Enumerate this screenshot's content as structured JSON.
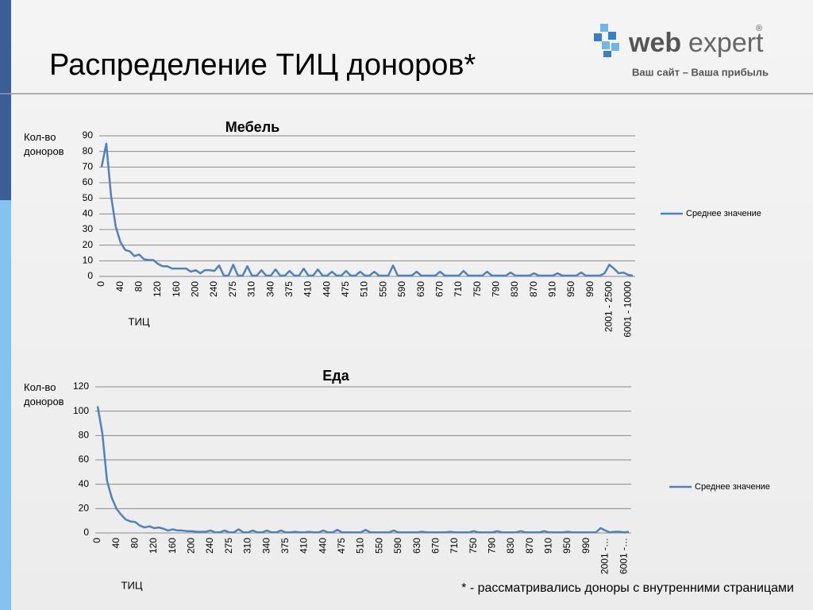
{
  "header": {
    "title": "Распределение ТИЦ доноров*",
    "logo_web": "web",
    "logo_expert": "expert",
    "logo_mark": "®",
    "tagline": "Ваш сайт – Ваша прибыль"
  },
  "chart_data": [
    {
      "type": "line",
      "title": "Мебель",
      "y_label": "Кол-во доноров",
      "x_label": "ТИЦ",
      "categories": [
        "0",
        null,
        null,
        null,
        "40",
        null,
        null,
        null,
        "80",
        null,
        null,
        null,
        "120",
        null,
        null,
        null,
        "160",
        null,
        null,
        null,
        "200",
        null,
        null,
        null,
        "240",
        null,
        null,
        null,
        "275",
        null,
        null,
        null,
        "310",
        null,
        null,
        null,
        "340",
        null,
        null,
        null,
        "375",
        null,
        null,
        null,
        "410",
        null,
        null,
        null,
        "440",
        null,
        null,
        null,
        "475",
        null,
        null,
        null,
        "510",
        null,
        null,
        null,
        "550",
        null,
        null,
        null,
        "590",
        null,
        null,
        null,
        "630",
        null,
        null,
        null,
        "670",
        null,
        null,
        null,
        "710",
        null,
        null,
        null,
        "750",
        null,
        null,
        null,
        "790",
        null,
        null,
        null,
        "830",
        null,
        null,
        null,
        "870",
        null,
        null,
        null,
        "910",
        null,
        null,
        null,
        "950",
        null,
        null,
        null,
        "990",
        null,
        null,
        null,
        "2001 - 2500",
        null,
        null,
        null,
        "6001 - 10000",
        null
      ],
      "series": [
        {
          "name": "Среднее значение",
          "color": "#4f81bd",
          "values": [
            70,
            85,
            52,
            32,
            22,
            17,
            16,
            13,
            14,
            11,
            10.5,
            10.5,
            8,
            6.5,
            6.5,
            5,
            5,
            5,
            5,
            3,
            4,
            2,
            4,
            4,
            3.5,
            7,
            0.5,
            0.5,
            7.5,
            0.5,
            0.5,
            6.5,
            0.5,
            0.5,
            4,
            0.5,
            0.5,
            4.5,
            0.5,
            0.5,
            3.5,
            0.5,
            0.5,
            5,
            0.5,
            0.5,
            4.5,
            0.5,
            0.5,
            3,
            0.5,
            0.5,
            3.5,
            0.5,
            0.5,
            3,
            0.5,
            0.5,
            3,
            0.5,
            0.5,
            0.5,
            7,
            0.5,
            0.5,
            0.5,
            0.5,
            3,
            0.5,
            0.5,
            0.5,
            0.5,
            3,
            0.5,
            0.5,
            0.5,
            0.5,
            3.5,
            0.5,
            0.5,
            0.5,
            0.5,
            3,
            0.5,
            0.5,
            0.5,
            0.5,
            2.5,
            0.5,
            0.5,
            0.5,
            0.5,
            2,
            0.5,
            0.5,
            0.5,
            0.5,
            2,
            0.5,
            0.5,
            0.5,
            0.5,
            2.5,
            0.5,
            0.5,
            0.5,
            0.5,
            2,
            7.5,
            5,
            2,
            2.5,
            1,
            0.5
          ]
        }
      ],
      "ylim": [
        0,
        90
      ],
      "yticks": [
        0,
        10,
        20,
        30,
        40,
        50,
        60,
        70,
        80,
        90
      ],
      "grid": true
    },
    {
      "type": "line",
      "title": "Еда",
      "y_label": "Кол-во доноров",
      "x_label": "ТИЦ",
      "categories": [
        "0",
        null,
        null,
        null,
        "40",
        null,
        null,
        null,
        "80",
        null,
        null,
        null,
        "120",
        null,
        null,
        null,
        "160",
        null,
        null,
        null,
        "200",
        null,
        null,
        null,
        "240",
        null,
        null,
        null,
        "275",
        null,
        null,
        null,
        "310",
        null,
        null,
        null,
        "340",
        null,
        null,
        null,
        "375",
        null,
        null,
        null,
        "410",
        null,
        null,
        null,
        "440",
        null,
        null,
        null,
        "475",
        null,
        null,
        null,
        "510",
        null,
        null,
        null,
        "550",
        null,
        null,
        null,
        "590",
        null,
        null,
        null,
        "630",
        null,
        null,
        null,
        "670",
        null,
        null,
        null,
        "710",
        null,
        null,
        null,
        "750",
        null,
        null,
        null,
        "790",
        null,
        null,
        null,
        "830",
        null,
        null,
        null,
        "870",
        null,
        null,
        null,
        "910",
        null,
        null,
        null,
        "950",
        null,
        null,
        null,
        "990",
        null,
        null,
        null,
        "2001 -…",
        null,
        null,
        null,
        "6001 -…",
        null
      ],
      "series": [
        {
          "name": "Среднее значение",
          "color": "#4f81bd",
          "values": [
            104,
            82,
            43,
            29,
            20,
            15,
            11,
            9.5,
            9,
            6,
            4.5,
            5.5,
            4,
            4.5,
            3.5,
            2,
            3,
            2,
            2,
            1.5,
            1.5,
            1,
            1,
            1,
            2,
            0.5,
            0.5,
            2,
            0.5,
            0.5,
            3,
            0.5,
            0.5,
            2,
            0.5,
            0.5,
            2,
            0.5,
            0.5,
            2,
            0.5,
            0.5,
            1,
            0.5,
            0.5,
            1,
            0.5,
            0.5,
            2,
            0.5,
            0.5,
            2.5,
            0.5,
            0.5,
            0.5,
            0.5,
            0.5,
            2.5,
            0.5,
            0.5,
            0.5,
            0.5,
            0.5,
            2,
            0.5,
            0.5,
            0.5,
            0.5,
            0.5,
            1,
            0.5,
            0.5,
            0.5,
            0.5,
            0.5,
            1,
            0.5,
            0.5,
            0.5,
            0.5,
            1.5,
            0.5,
            0.5,
            0.5,
            0.5,
            1.5,
            0.5,
            0.5,
            0.5,
            0.5,
            1.5,
            0.5,
            0.5,
            0.5,
            0.5,
            1.5,
            0.5,
            0.5,
            0.5,
            0.5,
            1,
            0.5,
            0.5,
            0.5,
            0.5,
            0.5,
            0.5,
            4,
            2,
            0.5,
            1,
            1,
            0.5,
            1
          ]
        }
      ],
      "ylim": [
        0,
        120
      ],
      "yticks": [
        0,
        20,
        40,
        60,
        80,
        100,
        120
      ],
      "grid": true
    }
  ],
  "footnote": "* - рассматривались доноры с внутренними страницами"
}
